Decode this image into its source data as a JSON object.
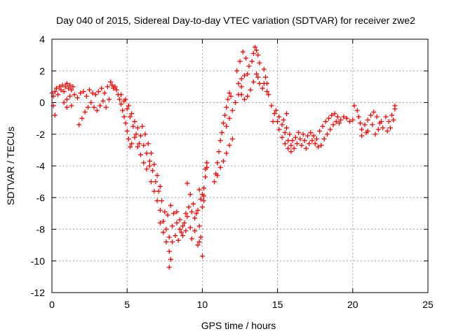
{
  "chart_data": {
    "type": "scatter",
    "title": "Day 040 of 2015, Sidereal Day-to-day VTEC variation (SDTVAR) for receiver zwe2",
    "xlabel": "GPS time / hours",
    "ylabel": "SDTVAR / TECUs",
    "xlim": [
      0,
      25
    ],
    "ylim": [
      -12,
      4
    ],
    "xticks": [
      0,
      5,
      10,
      15,
      20,
      25
    ],
    "yticks": [
      -12,
      -10,
      -8,
      -6,
      -4,
      -2,
      0,
      2,
      4
    ],
    "grid": true,
    "marker": "+",
    "color": "#ff0000",
    "series": [
      {
        "name": "zwe2",
        "points": [
          [
            0.0,
            0.6
          ],
          [
            0.1,
            0.4
          ],
          [
            0.2,
            0.7
          ],
          [
            0.3,
            0.9
          ],
          [
            0.4,
            0.5
          ],
          [
            0.5,
            1.0
          ],
          [
            0.6,
            0.8
          ],
          [
            0.7,
            1.1
          ],
          [
            0.8,
            0.7
          ],
          [
            0.9,
            1.0
          ],
          [
            1.0,
            1.2
          ],
          [
            1.1,
            0.9
          ],
          [
            1.2,
            1.1
          ],
          [
            1.3,
            0.8
          ],
          [
            1.4,
            1.0
          ],
          [
            1.2,
            0.4
          ],
          [
            1.0,
            0.2
          ],
          [
            0.8,
            0.0
          ],
          [
            0.2,
            -0.8
          ],
          [
            0.1,
            -0.2
          ],
          [
            1.5,
            0.5
          ],
          [
            1.7,
            0.3
          ],
          [
            1.9,
            0.6
          ],
          [
            2.1,
            0.7
          ],
          [
            2.3,
            0.4
          ],
          [
            2.5,
            0.8
          ],
          [
            2.7,
            0.6
          ],
          [
            2.9,
            0.5
          ],
          [
            3.1,
            0.7
          ],
          [
            3.3,
            0.9
          ],
          [
            3.5,
            0.6
          ],
          [
            3.7,
            1.0
          ],
          [
            3.9,
            1.3
          ],
          [
            4.0,
            1.1
          ],
          [
            4.1,
            0.9
          ],
          [
            4.2,
            1.0
          ],
          [
            4.3,
            0.8
          ],
          [
            4.4,
            0.5
          ],
          [
            4.5,
            0.2
          ],
          [
            1.8,
            -1.4
          ],
          [
            2.0,
            -1.0
          ],
          [
            2.2,
            -0.6
          ],
          [
            2.4,
            -0.3
          ],
          [
            2.6,
            0.0
          ],
          [
            2.8,
            -0.3
          ],
          [
            3.0,
            -0.5
          ],
          [
            3.2,
            -0.2
          ],
          [
            3.4,
            0.1
          ],
          [
            3.6,
            -0.3
          ],
          [
            3.8,
            0.2
          ],
          [
            1.0,
            -0.3
          ],
          [
            1.3,
            -0.2
          ],
          [
            4.6,
            -0.1
          ],
          [
            4.7,
            -0.5
          ],
          [
            4.8,
            -0.9
          ],
          [
            4.9,
            -1.3
          ],
          [
            5.0,
            -1.8
          ],
          [
            5.1,
            -2.3
          ],
          [
            5.2,
            -2.8
          ],
          [
            4.6,
            0.5
          ],
          [
            4.8,
            0.1
          ],
          [
            5.0,
            -0.4
          ],
          [
            5.2,
            -0.9
          ],
          [
            5.4,
            -1.5
          ],
          [
            5.6,
            -2.0
          ],
          [
            5.8,
            -2.6
          ],
          [
            4.9,
            0.2
          ],
          [
            5.1,
            -0.2
          ],
          [
            5.3,
            -0.7
          ],
          [
            5.5,
            -1.2
          ],
          [
            5.7,
            -1.6
          ],
          [
            5.9,
            -2.1
          ],
          [
            6.1,
            -2.7
          ],
          [
            5.3,
            -2.6
          ],
          [
            5.5,
            -2.2
          ],
          [
            5.7,
            -2.8
          ],
          [
            5.9,
            -3.3
          ],
          [
            6.1,
            -3.8
          ],
          [
            6.3,
            -4.2
          ],
          [
            6.5,
            -4.0
          ],
          [
            6.0,
            -1.5
          ],
          [
            6.2,
            -2.0
          ],
          [
            6.4,
            -2.6
          ],
          [
            6.6,
            -3.2
          ],
          [
            6.8,
            -3.9
          ],
          [
            7.0,
            -4.6
          ],
          [
            7.2,
            -5.3
          ],
          [
            6.3,
            -3.2
          ],
          [
            6.5,
            -3.7
          ],
          [
            6.7,
            -4.3
          ],
          [
            6.9,
            -5.0
          ],
          [
            7.1,
            -5.6
          ],
          [
            7.3,
            -6.2
          ],
          [
            7.5,
            -6.9
          ],
          [
            6.6,
            -5.0
          ],
          [
            6.8,
            -5.6
          ],
          [
            7.0,
            -6.2
          ],
          [
            7.2,
            -6.8
          ],
          [
            7.4,
            -7.5
          ],
          [
            7.6,
            -8.0
          ],
          [
            7.8,
            -8.5
          ],
          [
            7.2,
            -7.6
          ],
          [
            7.4,
            -8.2
          ],
          [
            7.6,
            -8.8
          ],
          [
            7.8,
            -9.4
          ],
          [
            7.9,
            -9.9
          ],
          [
            7.8,
            -10.4
          ],
          [
            8.0,
            -8.8
          ],
          [
            7.7,
            -7.1
          ],
          [
            7.9,
            -6.5
          ],
          [
            8.1,
            -7.0
          ],
          [
            8.3,
            -7.6
          ],
          [
            8.5,
            -8.0
          ],
          [
            8.7,
            -8.4
          ],
          [
            8.9,
            -8.1
          ],
          [
            8.0,
            -7.8
          ],
          [
            8.2,
            -8.4
          ],
          [
            8.4,
            -8.7
          ],
          [
            8.6,
            -8.2
          ],
          [
            8.8,
            -7.6
          ],
          [
            9.0,
            -7.2
          ],
          [
            9.2,
            -7.9
          ],
          [
            8.3,
            -6.9
          ],
          [
            8.5,
            -7.4
          ],
          [
            8.7,
            -7.8
          ],
          [
            8.9,
            -7.0
          ],
          [
            9.1,
            -6.6
          ],
          [
            9.3,
            -6.9
          ],
          [
            9.5,
            -7.3
          ],
          [
            9.0,
            -5.1
          ],
          [
            9.2,
            -5.8
          ],
          [
            9.4,
            -6.4
          ],
          [
            9.6,
            -7.0
          ],
          [
            9.8,
            -7.8
          ],
          [
            9.9,
            -8.5
          ],
          [
            10.0,
            -9.7
          ],
          [
            9.3,
            -8.6
          ],
          [
            9.5,
            -8.1
          ],
          [
            9.7,
            -6.8
          ],
          [
            9.9,
            -6.1
          ],
          [
            10.1,
            -5.4
          ],
          [
            10.2,
            -4.7
          ],
          [
            10.3,
            -4.1
          ],
          [
            9.7,
            -9.0
          ],
          [
            9.8,
            -8.8
          ],
          [
            10.0,
            -6.6
          ],
          [
            10.1,
            -5.9
          ],
          [
            10.2,
            -4.2
          ],
          [
            10.3,
            -3.8
          ],
          [
            10.1,
            -6.2
          ],
          [
            10.0,
            -5.8
          ],
          [
            9.8,
            -5.5
          ],
          [
            10.8,
            -5.0
          ],
          [
            10.9,
            -4.5
          ],
          [
            11.0,
            -3.8
          ],
          [
            11.1,
            -3.1
          ],
          [
            11.2,
            -2.4
          ],
          [
            11.3,
            -1.9
          ],
          [
            11.4,
            -1.3
          ],
          [
            11.5,
            -0.8
          ],
          [
            11.6,
            -0.3
          ],
          [
            11.7,
            0.2
          ],
          [
            11.8,
            0.6
          ],
          [
            11.9,
            0.4
          ],
          [
            11.0,
            -4.6
          ],
          [
            11.2,
            -4.1
          ],
          [
            11.4,
            -3.7
          ],
          [
            11.6,
            -3.2
          ],
          [
            11.8,
            -2.7
          ],
          [
            12.0,
            -2.3
          ],
          [
            11.6,
            -1.5
          ],
          [
            11.8,
            -1.0
          ],
          [
            12.0,
            -0.5
          ],
          [
            12.2,
            0.0
          ],
          [
            12.4,
            0.5
          ],
          [
            12.6,
            1.0
          ],
          [
            12.8,
            1.7
          ],
          [
            12.3,
            2.0
          ],
          [
            12.5,
            2.6
          ],
          [
            12.7,
            3.2
          ],
          [
            12.9,
            2.8
          ],
          [
            13.1,
            2.3
          ],
          [
            12.6,
            0.5
          ],
          [
            12.8,
            0.2
          ],
          [
            13.0,
            0.4
          ],
          [
            13.2,
            0.8
          ],
          [
            13.4,
            1.3
          ],
          [
            13.6,
            1.8
          ],
          [
            13.3,
            2.6
          ],
          [
            13.4,
            3.1
          ],
          [
            13.5,
            3.5
          ],
          [
            13.6,
            3.3
          ],
          [
            13.7,
            3.0
          ],
          [
            13.8,
            2.5
          ],
          [
            13.7,
            1.6
          ],
          [
            13.8,
            1.2
          ],
          [
            14.0,
            0.9
          ],
          [
            14.1,
            1.2
          ],
          [
            14.3,
            0.7
          ],
          [
            14.4,
            0.5
          ],
          [
            14.1,
            2.1
          ],
          [
            14.2,
            1.6
          ],
          [
            14.3,
            1.2
          ],
          [
            12.4,
            1.2
          ],
          [
            12.6,
            1.5
          ],
          [
            13.0,
            1.8
          ],
          [
            14.6,
            -0.2
          ],
          [
            14.8,
            -0.7
          ],
          [
            15.0,
            -1.2
          ],
          [
            15.1,
            -1.7
          ],
          [
            15.3,
            -2.2
          ],
          [
            15.5,
            -2.6
          ],
          [
            15.7,
            -2.9
          ],
          [
            15.9,
            -3.1
          ],
          [
            16.1,
            -2.9
          ],
          [
            16.3,
            -2.6
          ],
          [
            16.5,
            -2.3
          ],
          [
            16.7,
            -2.0
          ],
          [
            14.9,
            -0.5
          ],
          [
            15.1,
            -0.9
          ],
          [
            15.3,
            -1.4
          ],
          [
            15.5,
            -1.9
          ],
          [
            15.7,
            -2.4
          ],
          [
            15.9,
            -2.7
          ],
          [
            15.4,
            -1.1
          ],
          [
            15.6,
            -1.6
          ],
          [
            15.8,
            -2.0
          ],
          [
            16.0,
            -2.4
          ],
          [
            16.2,
            -2.2
          ],
          [
            16.4,
            -1.9
          ],
          [
            16.6,
            -2.7
          ],
          [
            16.8,
            -2.4
          ],
          [
            17.0,
            -2.1
          ],
          [
            17.2,
            -1.9
          ],
          [
            17.4,
            -2.1
          ],
          [
            17.6,
            -2.3
          ],
          [
            16.9,
            -2.9
          ],
          [
            17.1,
            -2.6
          ],
          [
            17.3,
            -2.4
          ],
          [
            17.5,
            -2.6
          ],
          [
            17.7,
            -2.8
          ],
          [
            17.9,
            -2.7
          ],
          [
            17.8,
            -1.8
          ],
          [
            18.0,
            -1.5
          ],
          [
            18.2,
            -1.2
          ],
          [
            18.4,
            -1.0
          ],
          [
            18.6,
            -0.8
          ],
          [
            18.8,
            -0.7
          ],
          [
            19.0,
            -0.9
          ],
          [
            19.2,
            -1.1
          ],
          [
            19.4,
            -0.9
          ],
          [
            19.6,
            -1.0
          ],
          [
            19.8,
            -1.2
          ],
          [
            20.0,
            -1.1
          ],
          [
            18.1,
            -2.3
          ],
          [
            18.3,
            -2.0
          ],
          [
            18.5,
            -1.7
          ],
          [
            18.7,
            -1.4
          ],
          [
            18.9,
            -1.2
          ],
          [
            19.1,
            -1.3
          ],
          [
            15.6,
            -0.7
          ],
          [
            14.7,
            -1.2
          ],
          [
            20.1,
            -0.2
          ],
          [
            20.3,
            -0.5
          ],
          [
            20.4,
            -0.9
          ],
          [
            20.5,
            -1.3
          ],
          [
            20.6,
            -1.7
          ],
          [
            20.8,
            -1.4
          ],
          [
            21.0,
            -1.1
          ],
          [
            21.2,
            -0.8
          ],
          [
            21.4,
            -0.6
          ],
          [
            21.6,
            -0.9
          ],
          [
            21.8,
            -1.3
          ],
          [
            22.0,
            -1.6
          ],
          [
            21.0,
            -1.8
          ],
          [
            21.3,
            -1.4
          ],
          [
            21.5,
            -2.0
          ],
          [
            21.7,
            -1.7
          ],
          [
            21.9,
            -1.2
          ],
          [
            22.2,
            -0.9
          ],
          [
            22.4,
            -1.2
          ],
          [
            22.6,
            -0.8
          ],
          [
            22.8,
            -0.4
          ],
          [
            22.7,
            -1.1
          ],
          [
            22.5,
            -1.6
          ],
          [
            22.3,
            -1.8
          ],
          [
            20.6,
            -2.1
          ],
          [
            20.9,
            -1.9
          ],
          [
            22.8,
            -0.2
          ]
        ]
      }
    ]
  }
}
